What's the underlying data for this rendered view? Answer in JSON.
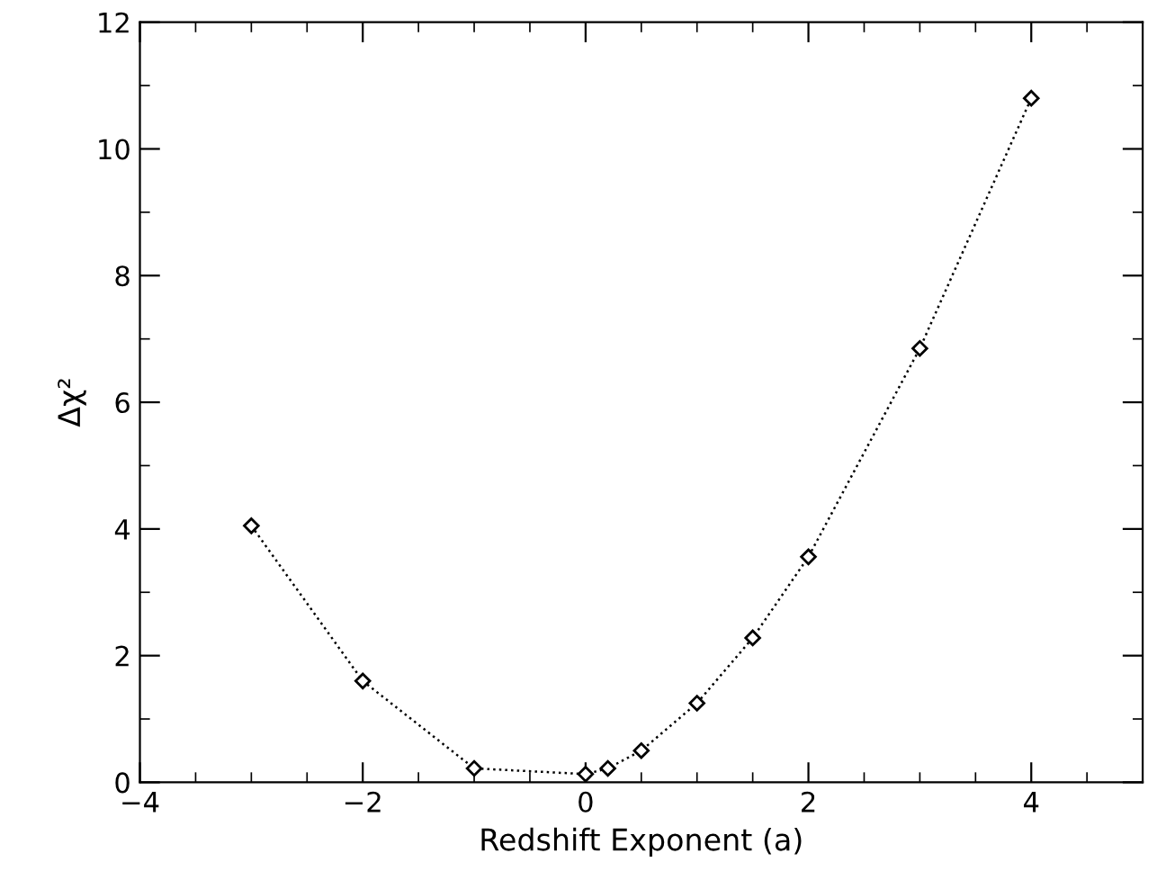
{
  "chart_data": {
    "type": "line",
    "xlabel": "Redshift Exponent (a)",
    "ylabel": "Δχ²",
    "x": [
      -3,
      -2,
      -1,
      0,
      0.2,
      0.5,
      1,
      1.5,
      2,
      3,
      4
    ],
    "series": [
      {
        "color": "#000000",
        "values": [
          4.05,
          1.6,
          0.22,
          0.13,
          0.22,
          0.5,
          1.25,
          2.28,
          3.56,
          6.85,
          10.8
        ]
      }
    ],
    "marker": "diamond",
    "line_style": "dotted",
    "grid": false,
    "legend": false,
    "xlim": [
      -4,
      5
    ],
    "xticks": [
      {
        "value": -4,
        "label": "−4"
      },
      {
        "value": -2,
        "label": "−2"
      },
      0,
      2,
      4
    ],
    "ylim": [
      0,
      12
    ],
    "yticks": [
      0,
      2,
      4,
      6,
      8,
      10,
      12
    ]
  }
}
